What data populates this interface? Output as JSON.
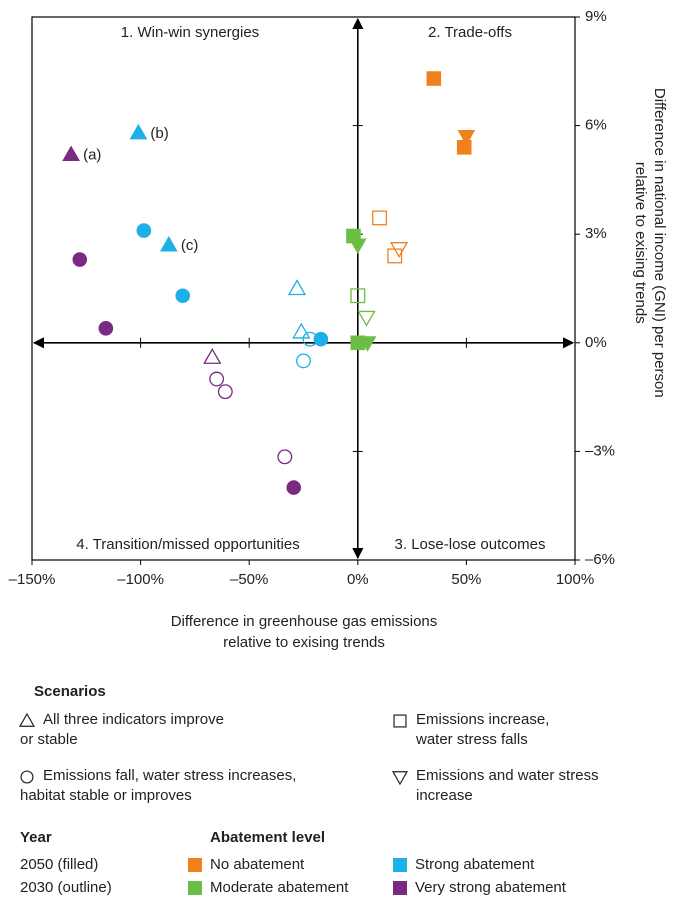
{
  "chart_data": {
    "type": "scatter",
    "xlim": [
      -150,
      100
    ],
    "ylim": [
      -6,
      9
    ],
    "xticks": [
      {
        "value": -150,
        "label": "–150%"
      },
      {
        "value": -100,
        "label": "–100%"
      },
      {
        "value": -50,
        "label": "–50%"
      },
      {
        "value": 0,
        "label": "0%"
      },
      {
        "value": 50,
        "label": "50%"
      },
      {
        "value": 100,
        "label": "100%"
      }
    ],
    "yticks": [
      {
        "value": -6,
        "label": "–6%"
      },
      {
        "value": -3,
        "label": "–3%"
      },
      {
        "value": 0,
        "label": "0%"
      },
      {
        "value": 3,
        "label": "3%"
      },
      {
        "value": 6,
        "label": "6%"
      },
      {
        "value": 9,
        "label": "9%"
      }
    ],
    "x_label": [
      "Difference in greenhouse gas emissions",
      "relative to exising trends"
    ],
    "y_label": [
      "Difference in national income (GNI) per person",
      "relative to exising trends"
    ],
    "quadrant_labels": [
      "1. Win-win synergies",
      "2. Trade-offs",
      "3. Lose-lose outcomes",
      "4. Transition/missed opportunities"
    ],
    "series": [
      {
        "color": "#1cb0e6",
        "marker": "triangle",
        "filled": true,
        "x": [
          -101,
          -87
        ],
        "y": [
          5.8,
          2.7
        ]
      },
      {
        "color": "#7a2a83",
        "marker": "triangle",
        "filled": true,
        "x": [
          -132
        ],
        "y": [
          5.2
        ]
      },
      {
        "color": "#1cb0e6",
        "marker": "circle",
        "filled": true,
        "x": [
          -98.5,
          -80.6,
          -17
        ],
        "y": [
          3.1,
          1.3,
          0.1
        ]
      },
      {
        "color": "#7a2a83",
        "marker": "circle",
        "filled": true,
        "x": [
          -128,
          -116,
          -29.5
        ],
        "y": [
          2.3,
          0.4,
          -4.0
        ]
      },
      {
        "color": "#1cb0e6",
        "marker": "triangle",
        "filled": false,
        "x": [
          -28,
          -26
        ],
        "y": [
          1.5,
          0.3
        ]
      },
      {
        "color": "#1cb0e6",
        "marker": "circle",
        "filled": false,
        "x": [
          -22,
          -25
        ],
        "y": [
          0.1,
          -0.5
        ]
      },
      {
        "color": "#7a2a83",
        "marker": "triangle",
        "filled": false,
        "x": [
          -67
        ],
        "y": [
          -0.4
        ]
      },
      {
        "color": "#7a2a83",
        "marker": "circle",
        "filled": false,
        "x": [
          -65,
          -61,
          -33.6
        ],
        "y": [
          -1.0,
          -1.35,
          -3.15
        ]
      },
      {
        "color": "#f0821e",
        "marker": "square",
        "filled": true,
        "x": [
          35,
          49
        ],
        "y": [
          7.3,
          5.4
        ]
      },
      {
        "color": "#f0821e",
        "marker": "triangle-down",
        "filled": true,
        "x": [
          50
        ],
        "y": [
          5.7
        ]
      },
      {
        "color": "#f0821e",
        "marker": "square",
        "filled": false,
        "x": [
          10,
          17
        ],
        "y": [
          3.45,
          2.4
        ]
      },
      {
        "color": "#f0821e",
        "marker": "triangle-down",
        "filled": false,
        "x": [
          19
        ],
        "y": [
          2.6
        ]
      },
      {
        "color": "#6cbd45",
        "marker": "square",
        "filled": true,
        "x": [
          -2,
          0
        ],
        "y": [
          2.95,
          0
        ]
      },
      {
        "color": "#6cbd45",
        "marker": "triangle-down",
        "filled": true,
        "x": [
          0,
          4.5
        ],
        "y": [
          2.7,
          0
        ]
      },
      {
        "color": "#6cbd45",
        "marker": "square",
        "filled": false,
        "x": [
          0
        ],
        "y": [
          1.3
        ]
      },
      {
        "color": "#6cbd45",
        "marker": "triangle-down",
        "filled": false,
        "x": [
          4
        ],
        "y": [
          0.7
        ]
      }
    ],
    "annotations": [
      {
        "text": "(a)",
        "series": 1,
        "index": 0
      },
      {
        "text": "(b)",
        "series": 0,
        "index": 0
      },
      {
        "text": "(c)",
        "series": 0,
        "index": 1
      }
    ],
    "legend": {
      "scenarios_title": "Scenarios",
      "scenarios": [
        {
          "marker": "triangle",
          "label": [
            "All three indicators improve",
            "or stable"
          ]
        },
        {
          "marker": "square",
          "label": [
            "Emissions increase,",
            "water stress falls"
          ]
        },
        {
          "marker": "circle",
          "label": [
            "Emissions fall, water stress increases,",
            "habitat stable or improves"
          ]
        },
        {
          "marker": "triangle-down",
          "label": [
            "Emissions and water stress",
            "increase"
          ]
        }
      ],
      "year_title": "Year",
      "years": [
        "2050 (filled)",
        "2030 (outline)"
      ],
      "abatement_title": "Abatement level",
      "abatement": [
        {
          "label": "No abatement",
          "color": "#f0821e"
        },
        {
          "label": "Strong abatement",
          "color": "#1cb0e6"
        },
        {
          "label": "Moderate abatement",
          "color": "#6cbd45"
        },
        {
          "label": "Very strong abatement",
          "color": "#7a2a83"
        }
      ]
    }
  }
}
